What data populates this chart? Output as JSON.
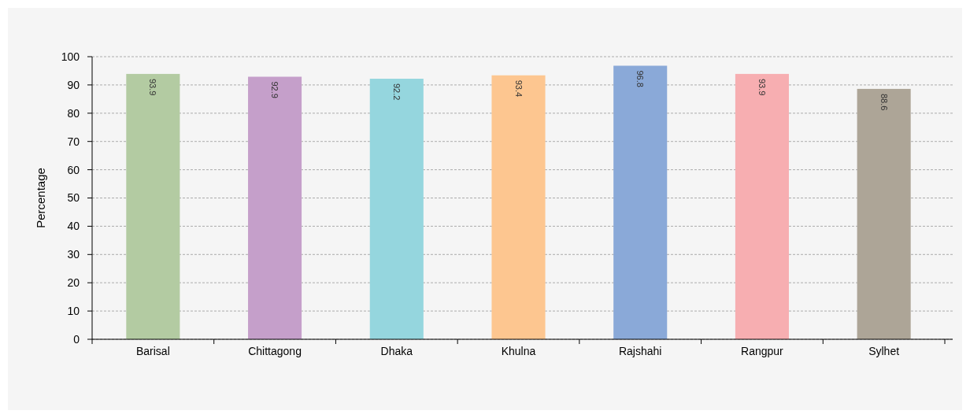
{
  "chart_data": {
    "type": "bar",
    "ylabel": "Percentage",
    "categories": [
      "Barisal",
      "Chittagong",
      "Dhaka",
      "Khulna",
      "Rajshahi",
      "Rangpur",
      "Sylhet"
    ],
    "values": [
      93.9,
      92.9,
      92.2,
      93.4,
      96.8,
      93.9,
      88.6
    ],
    "colors": [
      "#b3cba2",
      "#c59fca",
      "#95d6de",
      "#fdc690",
      "#8aa9d8",
      "#f7aeb1",
      "#ada597"
    ],
    "ylim": [
      0,
      100
    ],
    "yticks": [
      0,
      10,
      20,
      30,
      40,
      50,
      60,
      70,
      80,
      90,
      100
    ],
    "grid": "y",
    "data_labels": true
  }
}
